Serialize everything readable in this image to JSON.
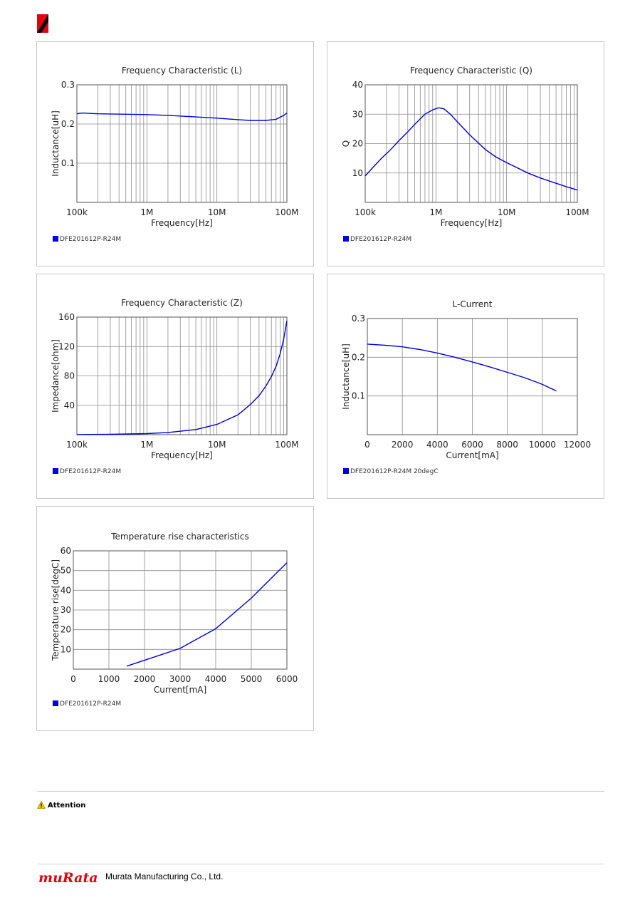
{
  "brand": {
    "logo_text": "muRata",
    "company": "Murata Manufacturing Co., Ltd.",
    "accent": "#e60012"
  },
  "attention_label": "Attention",
  "series_color": "#0000e0",
  "chart_data": [
    {
      "type": "line",
      "title": "Frequency   Characteristic (L)",
      "xlabel": "Frequency[Hz]",
      "ylabel": "Inductance[uH]",
      "xscale": "log",
      "xlim": [
        100000,
        100000000
      ],
      "ylim": [
        0,
        0.3
      ],
      "xticks": [
        100000,
        1000000,
        10000000,
        100000000
      ],
      "xticklabels": [
        "100k",
        "1M",
        "10M",
        "100M"
      ],
      "yticks": [
        0.1,
        0.2,
        0.3
      ],
      "yticklabels": [
        "0.1",
        "0.2",
        "0.3"
      ],
      "grid": true,
      "legend": "bottom-left",
      "series": [
        {
          "name": "DFE201612P-R24M",
          "x": [
            100000,
            120000,
            150000,
            200000,
            500000,
            1000000,
            2000000,
            5000000,
            10000000,
            20000000,
            30000000,
            50000000,
            70000000,
            90000000,
            100000000
          ],
          "y": [
            0.226,
            0.228,
            0.227,
            0.226,
            0.225,
            0.224,
            0.222,
            0.218,
            0.215,
            0.211,
            0.209,
            0.209,
            0.212,
            0.222,
            0.228
          ]
        }
      ]
    },
    {
      "type": "line",
      "title": "Frequency   Characteristic (Q)",
      "xlabel": "Frequency[Hz]",
      "ylabel": "Q",
      "xscale": "log",
      "xlim": [
        100000,
        100000000
      ],
      "ylim": [
        0,
        40
      ],
      "xticks": [
        100000,
        1000000,
        10000000,
        100000000
      ],
      "xticklabels": [
        "100k",
        "1M",
        "10M",
        "100M"
      ],
      "yticks": [
        10,
        20,
        30,
        40
      ],
      "yticklabels": [
        "10",
        "20",
        "30",
        "40"
      ],
      "grid": true,
      "legend": "bottom-left",
      "series": [
        {
          "name": "DFE201612P-R24M",
          "x": [
            100000,
            130000,
            170000,
            220000,
            300000,
            400000,
            500000,
            700000,
            900000,
            1100000,
            1300000,
            1600000,
            2000000,
            3000000,
            5000000,
            7000000,
            10000000,
            20000000,
            30000000,
            50000000,
            70000000,
            100000000
          ],
          "y": [
            9,
            12,
            15,
            17.5,
            21,
            24,
            26.5,
            30,
            31.5,
            32.2,
            31.8,
            30,
            27.5,
            23,
            18,
            15.5,
            13.5,
            10,
            8.3,
            6.5,
            5.3,
            4.2
          ]
        }
      ]
    },
    {
      "type": "line",
      "title": "Frequency   Characteristic (Z)",
      "xlabel": "Frequency[Hz]",
      "ylabel": "Impedance[ohm]",
      "xscale": "log",
      "xlim": [
        100000,
        100000000
      ],
      "ylim": [
        0,
        160
      ],
      "xticks": [
        100000,
        1000000,
        10000000,
        100000000
      ],
      "xticklabels": [
        "100k",
        "1M",
        "10M",
        "100M"
      ],
      "yticks": [
        40,
        80,
        120,
        160
      ],
      "yticklabels": [
        "40",
        "80",
        "120",
        "160"
      ],
      "grid": true,
      "legend": "bottom-left",
      "series": [
        {
          "name": "DFE201612P-R24M",
          "x": [
            100000,
            300000,
            1000000,
            2000000,
            5000000,
            10000000,
            20000000,
            30000000,
            40000000,
            50000000,
            60000000,
            70000000,
            80000000,
            90000000,
            100000000
          ],
          "y": [
            0.2,
            0.5,
            1.5,
            3,
            7,
            14,
            27,
            41,
            53,
            66,
            79,
            93,
            110,
            130,
            155
          ]
        }
      ]
    },
    {
      "type": "line",
      "title": "L-Current",
      "xlabel": "Current[mA]",
      "ylabel": "Inductance[uH]",
      "xlim": [
        0,
        12000
      ],
      "ylim": [
        0,
        0.3
      ],
      "xticks": [
        0,
        2000,
        4000,
        6000,
        8000,
        10000,
        12000
      ],
      "xticklabels": [
        "0",
        "2000",
        "4000",
        "6000",
        "8000",
        "10000",
        "12000"
      ],
      "yticks": [
        0.1,
        0.2,
        0.3
      ],
      "yticklabels": [
        "0.1",
        "0.2",
        "0.3"
      ],
      "grid": true,
      "legend": "bottom-left",
      "series": [
        {
          "name": "DFE201612P-R24M 20degC",
          "x": [
            0,
            1000,
            2000,
            3000,
            4000,
            5000,
            6000,
            7000,
            8000,
            9000,
            10000,
            10800
          ],
          "y": [
            0.234,
            0.231,
            0.227,
            0.22,
            0.211,
            0.2,
            0.188,
            0.175,
            0.161,
            0.147,
            0.13,
            0.113
          ]
        }
      ]
    },
    {
      "type": "line",
      "title": "Temperature rise characteristics",
      "xlabel": "Current[mA]",
      "ylabel": "Temperature rise[degC]",
      "xlim": [
        0,
        6000
      ],
      "ylim": [
        0,
        60
      ],
      "xticks": [
        0,
        1000,
        2000,
        3000,
        4000,
        5000,
        6000
      ],
      "xticklabels": [
        "0",
        "1000",
        "2000",
        "3000",
        "4000",
        "5000",
        "6000"
      ],
      "yticks": [
        10,
        20,
        30,
        40,
        50,
        60
      ],
      "yticklabels": [
        "10",
        "20",
        "30",
        "40",
        "50",
        "60"
      ],
      "grid": true,
      "legend": "bottom-left",
      "series": [
        {
          "name": "DFE201612P-R24M",
          "x": [
            1500,
            2000,
            3000,
            4000,
            5000,
            6000
          ],
          "y": [
            1.5,
            4.5,
            10.5,
            20.5,
            36,
            54
          ]
        }
      ]
    }
  ]
}
